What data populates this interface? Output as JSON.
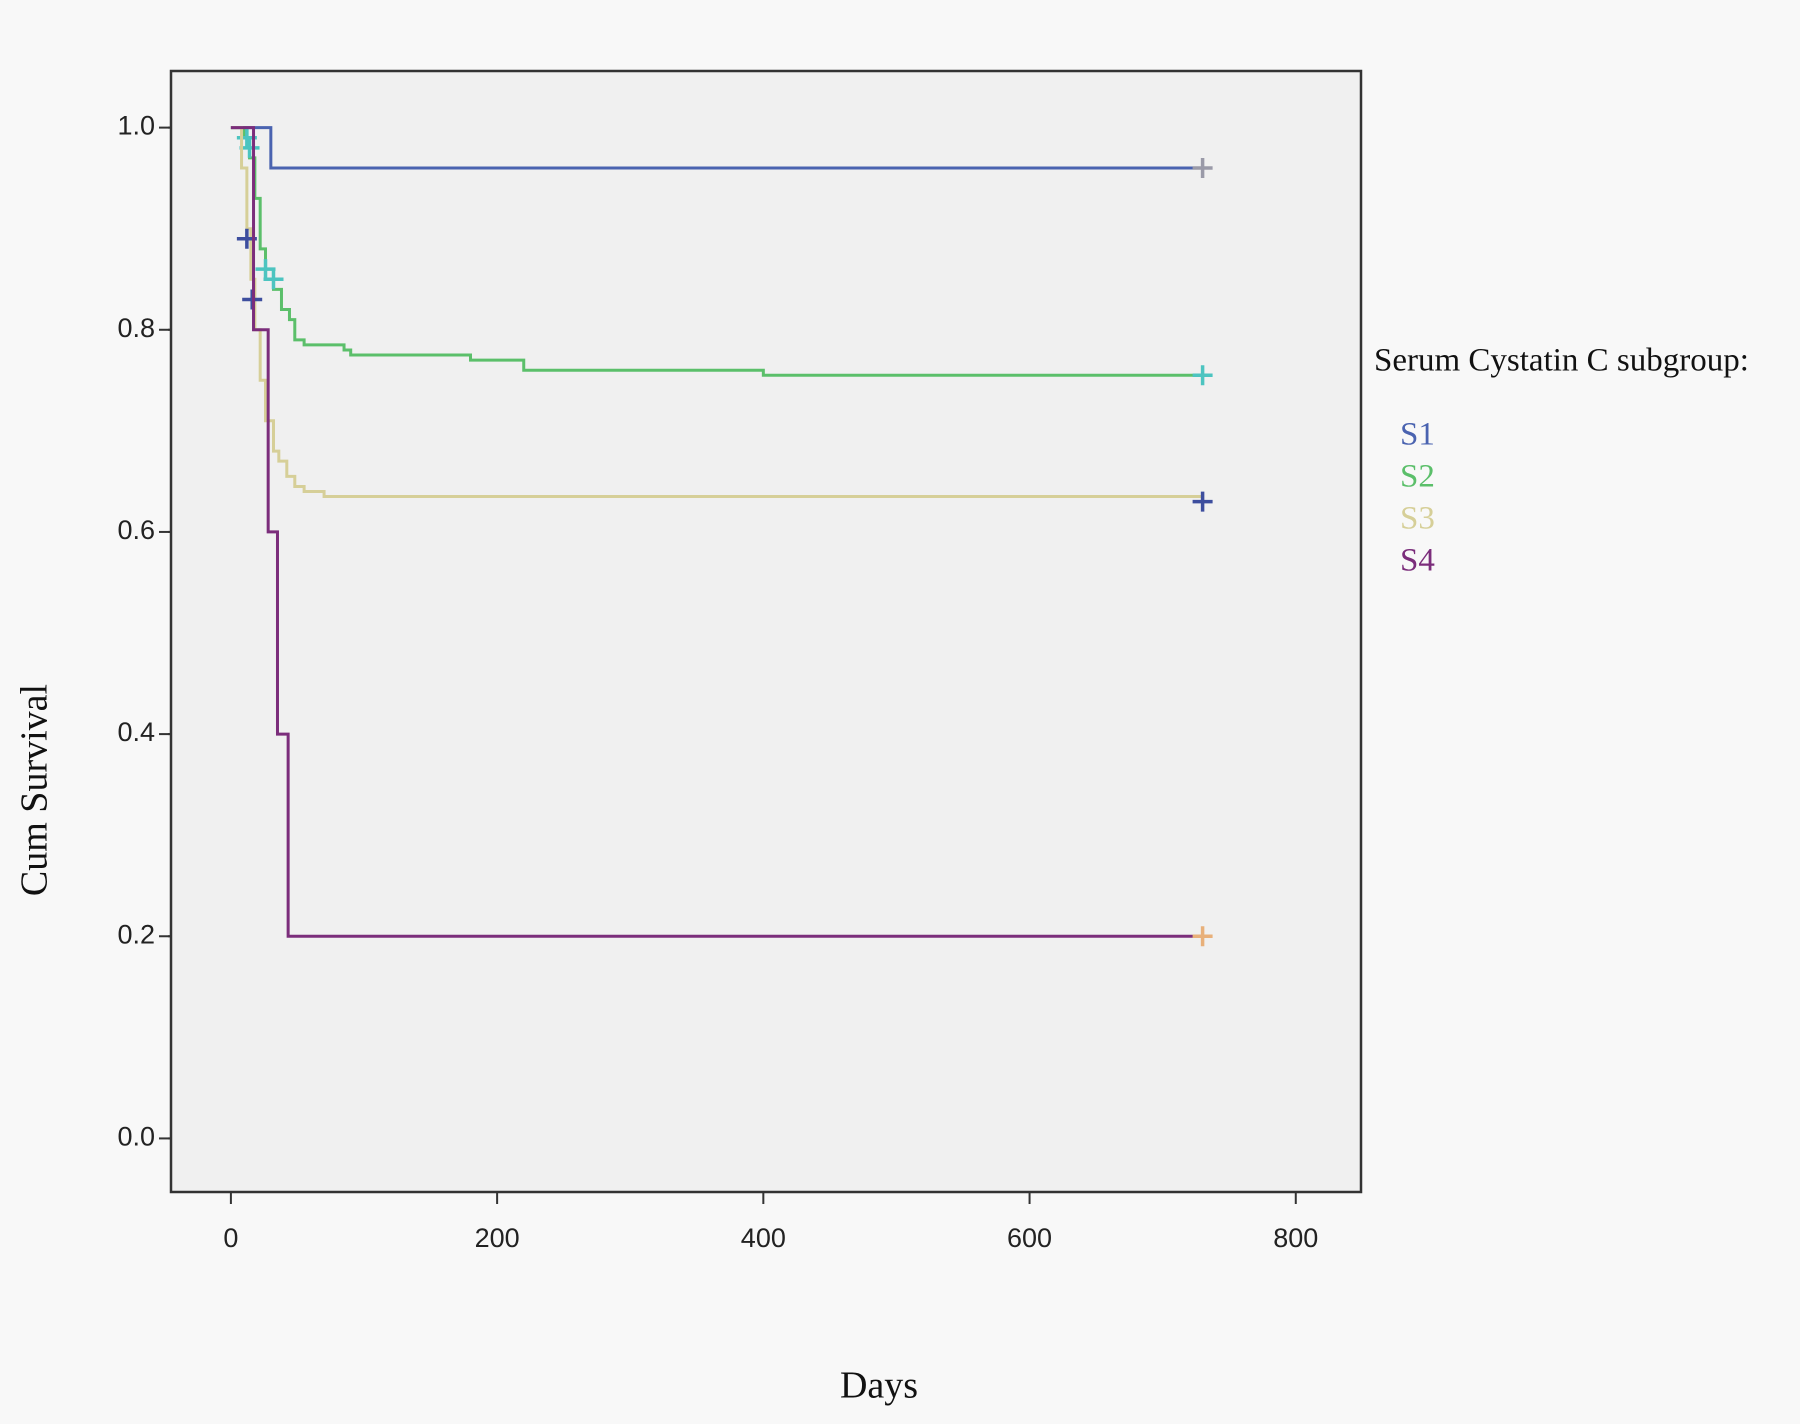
{
  "chart_data": {
    "type": "step",
    "x_label": "Days",
    "y_label": "Cum Survival",
    "legend_title": "Serum Cystatin C subgroup:",
    "xlim": [
      -45,
      849
    ],
    "ylim": [
      -0.053,
      1.056
    ],
    "xticks": [
      0,
      200,
      400,
      600,
      800
    ],
    "yticks": [
      {
        "value": 0,
        "label": "0.0"
      },
      {
        "value": 0.2,
        "label": "0.2"
      },
      {
        "value": 0.4,
        "label": "0.4"
      },
      {
        "value": 0.6,
        "label": "0.6"
      },
      {
        "value": 0.8,
        "label": "0.8"
      },
      {
        "value": 1,
        "label": "1.0"
      }
    ],
    "series": [
      {
        "name": "S1",
        "color": "#4a63b0",
        "censor_color": "#9a9aa8",
        "x": [
          0,
          30,
          730
        ],
        "values": [
          1,
          0.96,
          0.96
        ],
        "censor_x": [
          730
        ],
        "censor_values": [
          0.96
        ]
      },
      {
        "name": "S2",
        "color": "#5bbf6a",
        "censor_color": "#4cc4c0",
        "x": [
          0,
          10,
          14,
          18,
          22,
          26,
          32,
          38,
          44,
          48,
          55,
          75,
          85,
          90,
          180,
          220,
          400,
          730
        ],
        "values": [
          1,
          0.99,
          0.97,
          0.93,
          0.88,
          0.86,
          0.84,
          0.82,
          0.81,
          0.79,
          0.785,
          0.785,
          0.78,
          0.775,
          0.77,
          0.76,
          0.755,
          0.755
        ],
        "censor_x": [
          12,
          14,
          26,
          32,
          730
        ],
        "censor_values": [
          0.99,
          0.98,
          0.86,
          0.85,
          0.755
        ]
      },
      {
        "name": "S3",
        "color": "#d6cf98",
        "censor_color": "#3d4e9e",
        "x": [
          0,
          8,
          12,
          15,
          18,
          22,
          26,
          32,
          36,
          42,
          48,
          55,
          70,
          730
        ],
        "values": [
          1,
          0.96,
          0.9,
          0.85,
          0.8,
          0.75,
          0.71,
          0.68,
          0.67,
          0.655,
          0.645,
          0.64,
          0.635,
          0.635
        ],
        "censor_x": [
          12,
          16,
          730
        ],
        "censor_values": [
          0.89,
          0.83,
          0.63
        ]
      },
      {
        "name": "S4",
        "color": "#7b2d7b",
        "censor_color": "#e8b07a",
        "x": [
          0,
          17,
          28,
          35,
          43,
          730
        ],
        "values": [
          1,
          0.8,
          0.6,
          0.4,
          0.2,
          0.2
        ],
        "censor_x": [
          730
        ],
        "censor_values": [
          0.2
        ]
      }
    ]
  }
}
